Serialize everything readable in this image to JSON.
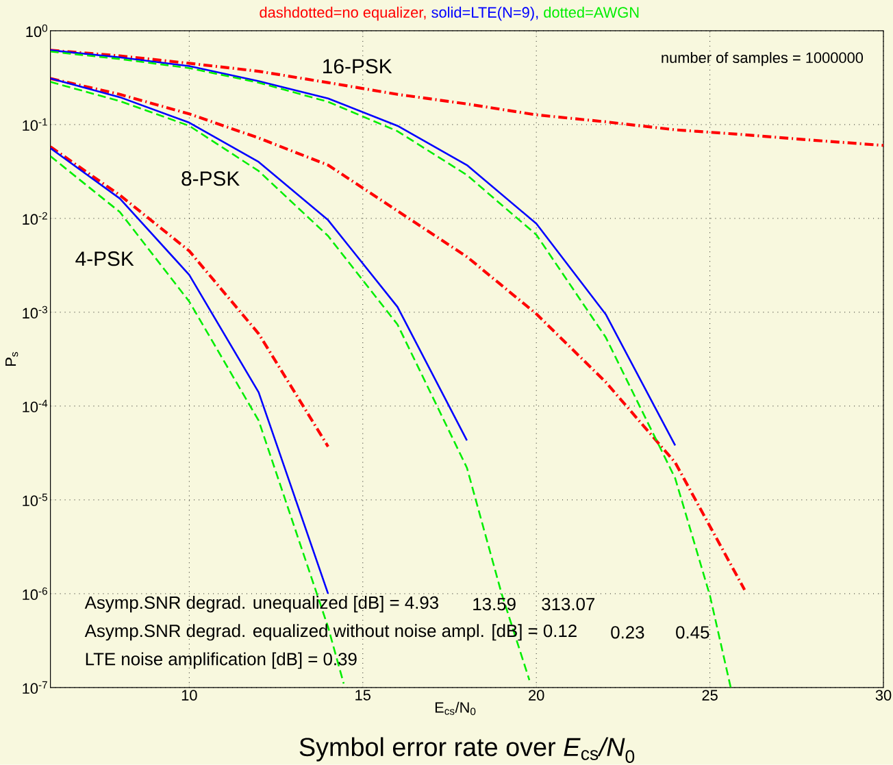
{
  "chart_data": {
    "type": "line",
    "title": "Symbol error rate over *E*$_{cs}$*/N*$_{0}$",
    "xlabel": "E$_{cs}$/N$_{0}$",
    "ylabel": "P$_{s}$",
    "xlim": [
      6,
      30
    ],
    "xticks": [
      10,
      15,
      20,
      25,
      30
    ],
    "ylim": [
      1e-07,
      1
    ],
    "log": "y",
    "grid": true,
    "marker": "none",
    "yticks": [
      {
        "value": 1e-07,
        "label": "10$^{-7}$"
      },
      {
        "value": 1e-06,
        "label": "10$^{-6}$"
      },
      {
        "value": 1e-05,
        "label": "10$^{-5}$"
      },
      {
        "value": 0.0001,
        "label": "10$^{-4}$"
      },
      {
        "value": 0.001,
        "label": "10$^{-3}$"
      },
      {
        "value": 0.01,
        "label": "10$^{-2}$"
      },
      {
        "value": 0.1,
        "label": "10$^{-1}$"
      },
      {
        "value": 1,
        "label": "10$^{0}$"
      }
    ],
    "series": [
      {
        "color": "#ff0000",
        "line_style": "dashdot",
        "x": [
          6,
          8,
          10,
          12,
          14
        ],
        "values": [
          0.058,
          0.0177,
          0.0045,
          0.00059,
          3.7e-05
        ]
      },
      {
        "color": "#0000ff",
        "line_style": "solid",
        "x": [
          6,
          8,
          10,
          12,
          14
        ],
        "values": [
          0.056,
          0.0163,
          0.0025,
          0.00014,
          1e-06
        ]
      },
      {
        "color": "#00ee00",
        "line_style": "dashed",
        "x": [
          6,
          8,
          10,
          12,
          14,
          14.45
        ],
        "values": [
          0.046,
          0.0117,
          0.0013,
          7e-05,
          4.4e-07,
          1.1e-07
        ]
      },
      {
        "color": "#ff0000",
        "line_style": "dashdot",
        "x": [
          6,
          8,
          10,
          12,
          14,
          16,
          18,
          20,
          22,
          24,
          26
        ],
        "values": [
          0.31,
          0.21,
          0.13,
          0.072,
          0.037,
          0.012,
          0.0039,
          0.00096,
          0.00018,
          2.5e-05,
          1.1e-06
        ]
      },
      {
        "color": "#0000ff",
        "line_style": "solid",
        "x": [
          6,
          8,
          10,
          12,
          14,
          16,
          18
        ],
        "values": [
          0.31,
          0.196,
          0.105,
          0.04,
          0.0096,
          0.00114,
          4.3e-05
        ]
      },
      {
        "color": "#00ee00",
        "line_style": "dashed",
        "x": [
          6,
          8,
          10,
          12,
          14,
          16,
          18,
          19,
          19.8
        ],
        "values": [
          0.285,
          0.178,
          0.097,
          0.032,
          0.0065,
          0.00074,
          2.2e-05,
          1e-06,
          1.2e-07
        ]
      },
      {
        "color": "#ff0000",
        "line_style": "dashdot",
        "x": [
          6,
          8,
          10,
          12,
          14,
          16,
          18,
          20,
          22,
          24,
          26,
          28,
          30
        ],
        "values": [
          0.62,
          0.54,
          0.45,
          0.37,
          0.28,
          0.21,
          0.166,
          0.127,
          0.107,
          0.088,
          0.078,
          0.068,
          0.06
        ]
      },
      {
        "color": "#0000ff",
        "line_style": "solid",
        "x": [
          6,
          8,
          10,
          12,
          14,
          16,
          18,
          20,
          22,
          24
        ],
        "values": [
          0.62,
          0.52,
          0.42,
          0.29,
          0.19,
          0.097,
          0.037,
          0.0088,
          0.00095,
          3.8e-05
        ]
      },
      {
        "color": "#00ee00",
        "line_style": "dashed",
        "x": [
          6,
          8,
          10,
          12,
          14,
          16,
          18,
          20,
          22,
          24,
          25,
          25.6
        ],
        "values": [
          0.6,
          0.5,
          0.4,
          0.28,
          0.175,
          0.085,
          0.029,
          0.0067,
          0.00054,
          1.7e-05,
          9.6e-07,
          1e-07
        ]
      }
    ],
    "annotations": [
      "16-PSK",
      "8-PSK",
      "4-PSK",
      "dashdotted=no equalizer,",
      "solid=LTE(N=9),",
      "dotted=AWGN",
      "number of samples = 1000000",
      "Asymp.SNR degrad. unequalized [dB] = 4.93",
      "13.59",
      "313.07",
      "Asymp.SNR degrad. equalized without noise ampl. [dB] = 0.12",
      "0.23",
      "0.45",
      "LTE noise amplification [dB] = 0.39"
    ]
  }
}
